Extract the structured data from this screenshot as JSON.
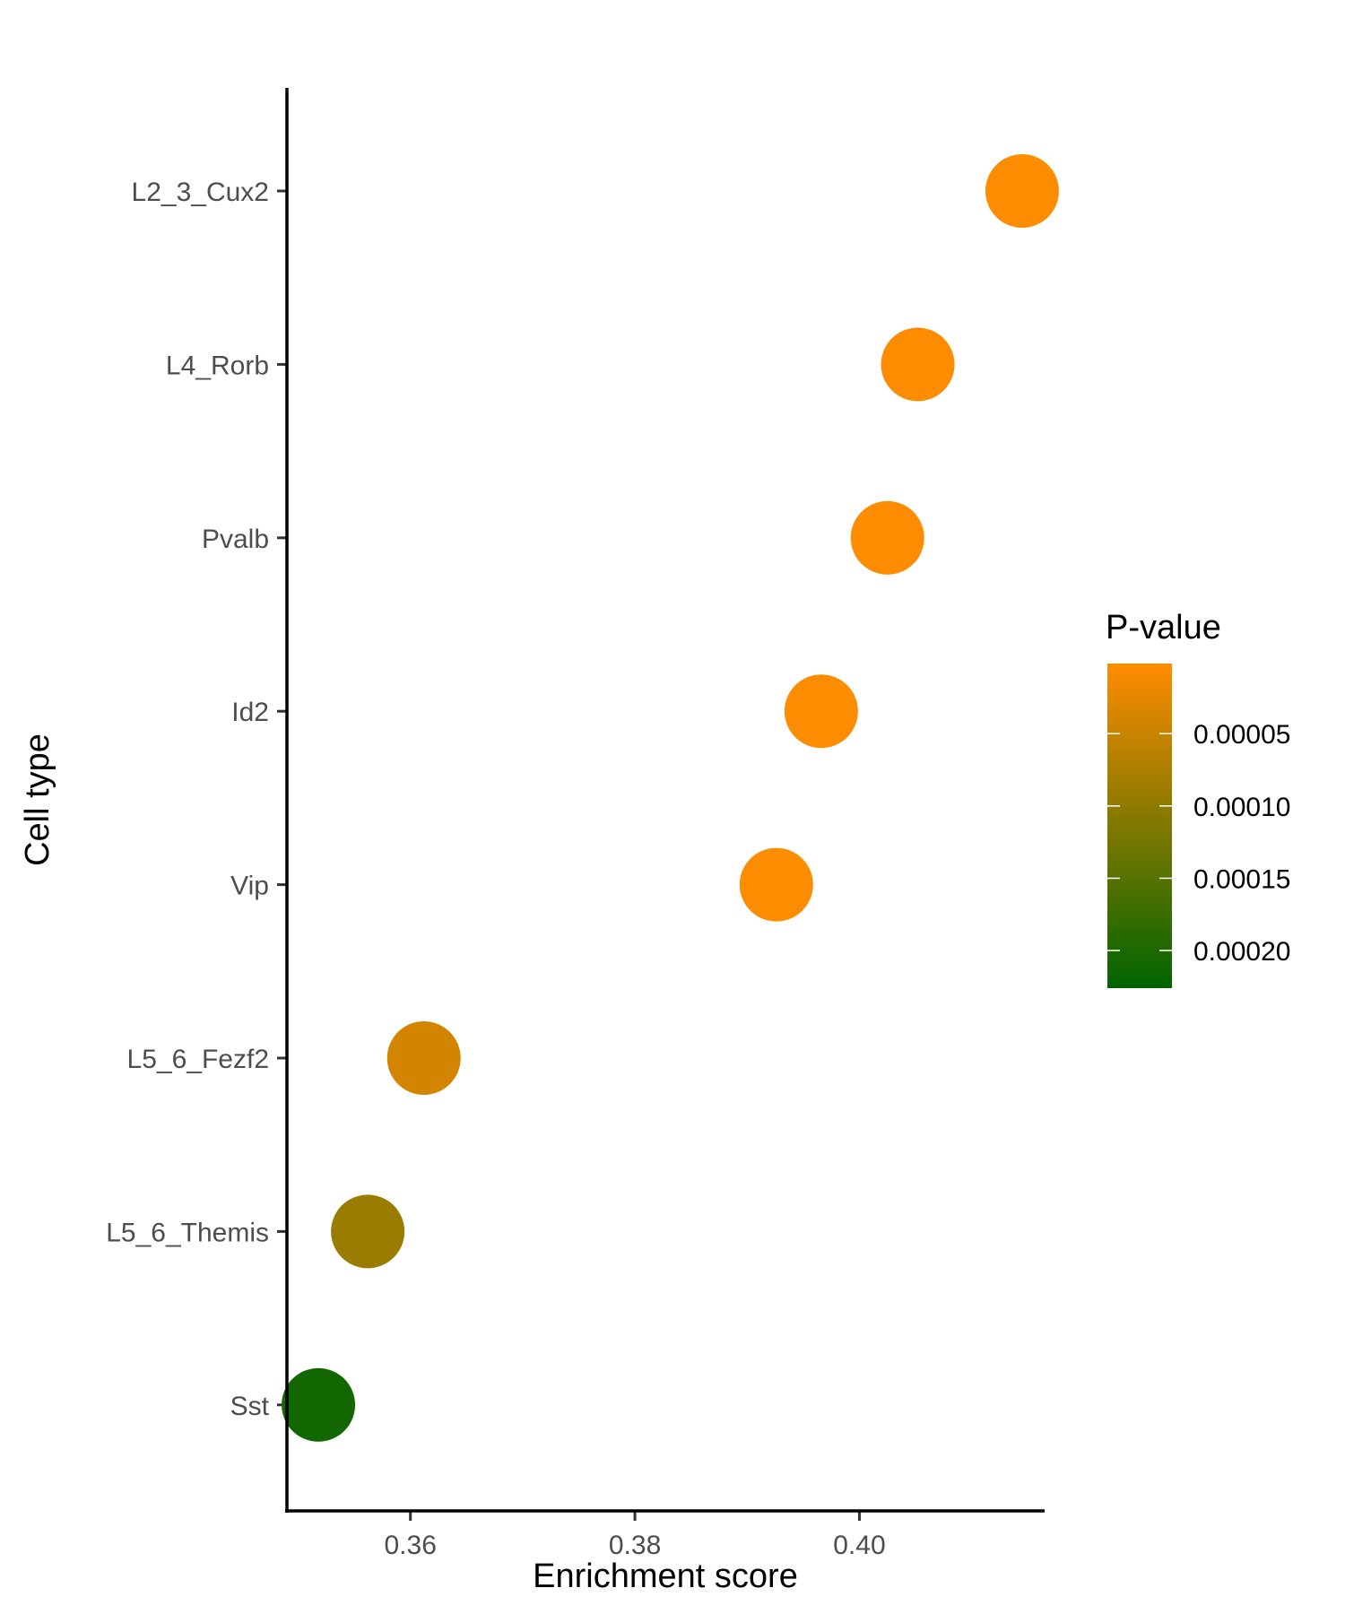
{
  "chart_data": {
    "type": "scatter",
    "title": "",
    "xlabel": "Enrichment score",
    "ylabel": "Cell type",
    "xlim": [
      0.349,
      0.4165
    ],
    "x_ticks": [
      "0.36",
      "0.38",
      "0.40"
    ],
    "x_tick_values": [
      0.36,
      0.38,
      0.4
    ],
    "categories": [
      "L2_3_Cux2",
      "L4_Rorb",
      "Pvalb",
      "Id2",
      "Vip",
      "L5_6_Fezf2",
      "L5_6_Themis",
      "Sst"
    ],
    "points": [
      {
        "category": "L2_3_Cux2",
        "x": 0.4145,
        "p_value": 2e-06
      },
      {
        "category": "L4_Rorb",
        "x": 0.4052,
        "p_value": 3e-06
      },
      {
        "category": "Pvalb",
        "x": 0.4025,
        "p_value": 3e-06
      },
      {
        "category": "Id2",
        "x": 0.3966,
        "p_value": 4e-06
      },
      {
        "category": "Vip",
        "x": 0.3926,
        "p_value": 4e-06
      },
      {
        "category": "L5_6_Fezf2",
        "x": 0.3612,
        "p_value": 4e-05
      },
      {
        "category": "L5_6_Themis",
        "x": 0.3562,
        "p_value": 9e-05
      },
      {
        "category": "Sst",
        "x": 0.3518,
        "p_value": 0.00021
      }
    ],
    "color_scale": {
      "title": "P-value",
      "low_color": "#ff8c00",
      "high_color": "#006400",
      "range": [
        1.5e-06,
        0.000226
      ],
      "tick_labels": [
        "0.00005",
        "0.00010",
        "0.00015",
        "0.00020"
      ],
      "tick_values": [
        5e-05,
        0.0001,
        0.00015,
        0.0002
      ]
    },
    "grid": false,
    "legend_position": "right"
  }
}
